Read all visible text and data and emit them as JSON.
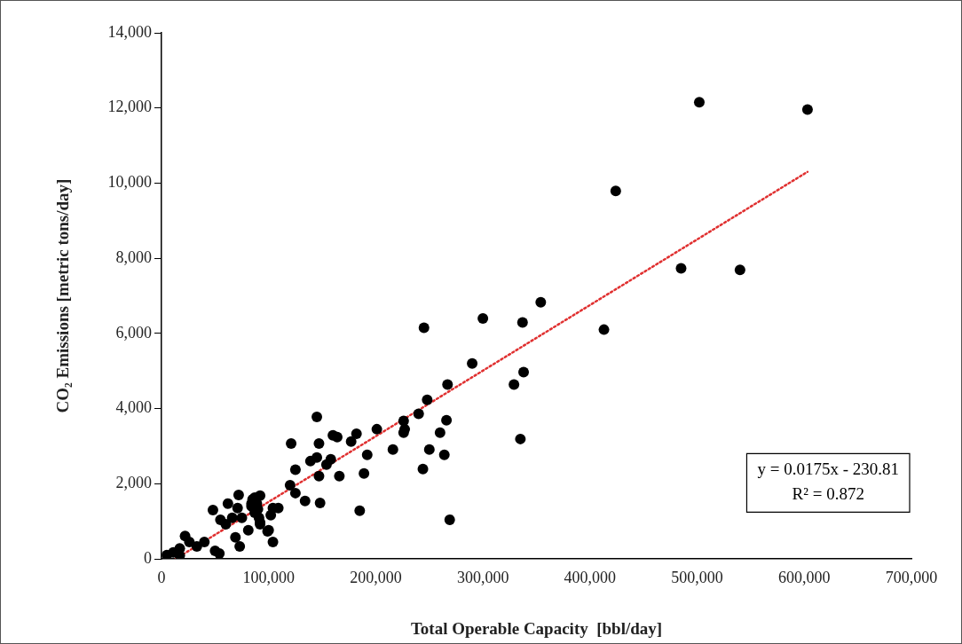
{
  "chart_data": {
    "type": "scatter",
    "xlabel": "Total Operable Capacity  [bbl/day]",
    "ylabel": "CO₂ Emissions [metric tons/day]",
    "xlim": [
      0,
      700000
    ],
    "ylim": [
      0,
      14000
    ],
    "xticks": [
      0,
      {
        "value": 100000,
        "label": "100,000"
      },
      {
        "value": 200000,
        "label": "200,000"
      },
      {
        "value": 300000,
        "label": "300,000"
      },
      {
        "value": 400000,
        "label": "400,000"
      },
      {
        "value": 500000,
        "label": "500,000"
      },
      {
        "value": 600000,
        "label": "600,000"
      },
      {
        "value": 700000,
        "label": "700,000"
      }
    ],
    "yticks": [
      0,
      {
        "value": 2000,
        "label": "2,000"
      },
      {
        "value": 4000,
        "label": "4,000"
      },
      {
        "value": 6000,
        "label": "6,000"
      },
      {
        "value": 8000,
        "label": "8,000"
      },
      {
        "value": 10000,
        "label": "10,000"
      },
      {
        "value": 12000,
        "label": "12,000"
      },
      {
        "value": 14000,
        "label": "14,000"
      }
    ],
    "grid": false,
    "legend": false,
    "marker": "circle",
    "annotations": [
      "y = 0.0175x - 230.81",
      "R² = 0.872"
    ],
    "series": [
      {
        "color": "#000000",
        "x": [
          502000,
          603000,
          424000,
          485000,
          540000,
          413000,
          354000,
          337000,
          300000,
          290000,
          245000,
          338000,
          329000,
          267000,
          248000,
          240000,
          266000,
          260000,
          250000,
          264000,
          244000,
          335000,
          269000,
          226000,
          226000,
          227000,
          201000,
          182000,
          177000,
          164000,
          160000,
          145000,
          121000,
          147000,
          192000,
          216000,
          139000,
          145000,
          154000,
          158000,
          125000,
          147000,
          166000,
          189000,
          120000,
          125000,
          134000,
          148000,
          185000,
          87000,
          92000,
          84000,
          90000,
          104000,
          109000,
          102000,
          92000,
          100000,
          104000,
          72000,
          62000,
          71000,
          85000,
          89000,
          84000,
          48000,
          55000,
          60000,
          66000,
          75000,
          87000,
          91000,
          92000,
          81000,
          99000,
          69000,
          73000,
          22000,
          26000,
          40000,
          33000,
          17000,
          50000,
          54000,
          11000,
          5000,
          17000
        ],
        "values": [
          12150,
          11960,
          9790,
          7730,
          7690,
          6100,
          6830,
          6290,
          6400,
          5200,
          6150,
          4970,
          4640,
          4640,
          4230,
          3860,
          3690,
          3360,
          2910,
          2770,
          2390,
          3190,
          1040,
          3670,
          3360,
          3450,
          3450,
          3330,
          3120,
          3240,
          3290,
          3780,
          3070,
          3070,
          2770,
          2910,
          2600,
          2700,
          2510,
          2650,
          2370,
          2200,
          2200,
          2270,
          1960,
          1750,
          1540,
          1490,
          1280,
          1630,
          1680,
          1470,
          1320,
          1350,
          1350,
          1160,
          970,
          760,
          450,
          1700,
          1470,
          1350,
          1580,
          1470,
          1400,
          1300,
          1040,
          920,
          1090,
          1090,
          1230,
          1090,
          920,
          760,
          730,
          570,
          330,
          610,
          450,
          450,
          330,
          280,
          210,
          140,
          170,
          100,
          90
        ]
      },
      {
        "type": "line",
        "color": "#e03030",
        "marker": "none",
        "line_style": "dotted",
        "x": [
          13189,
          603000
        ],
        "values": [
          0,
          10300
        ]
      }
    ]
  }
}
